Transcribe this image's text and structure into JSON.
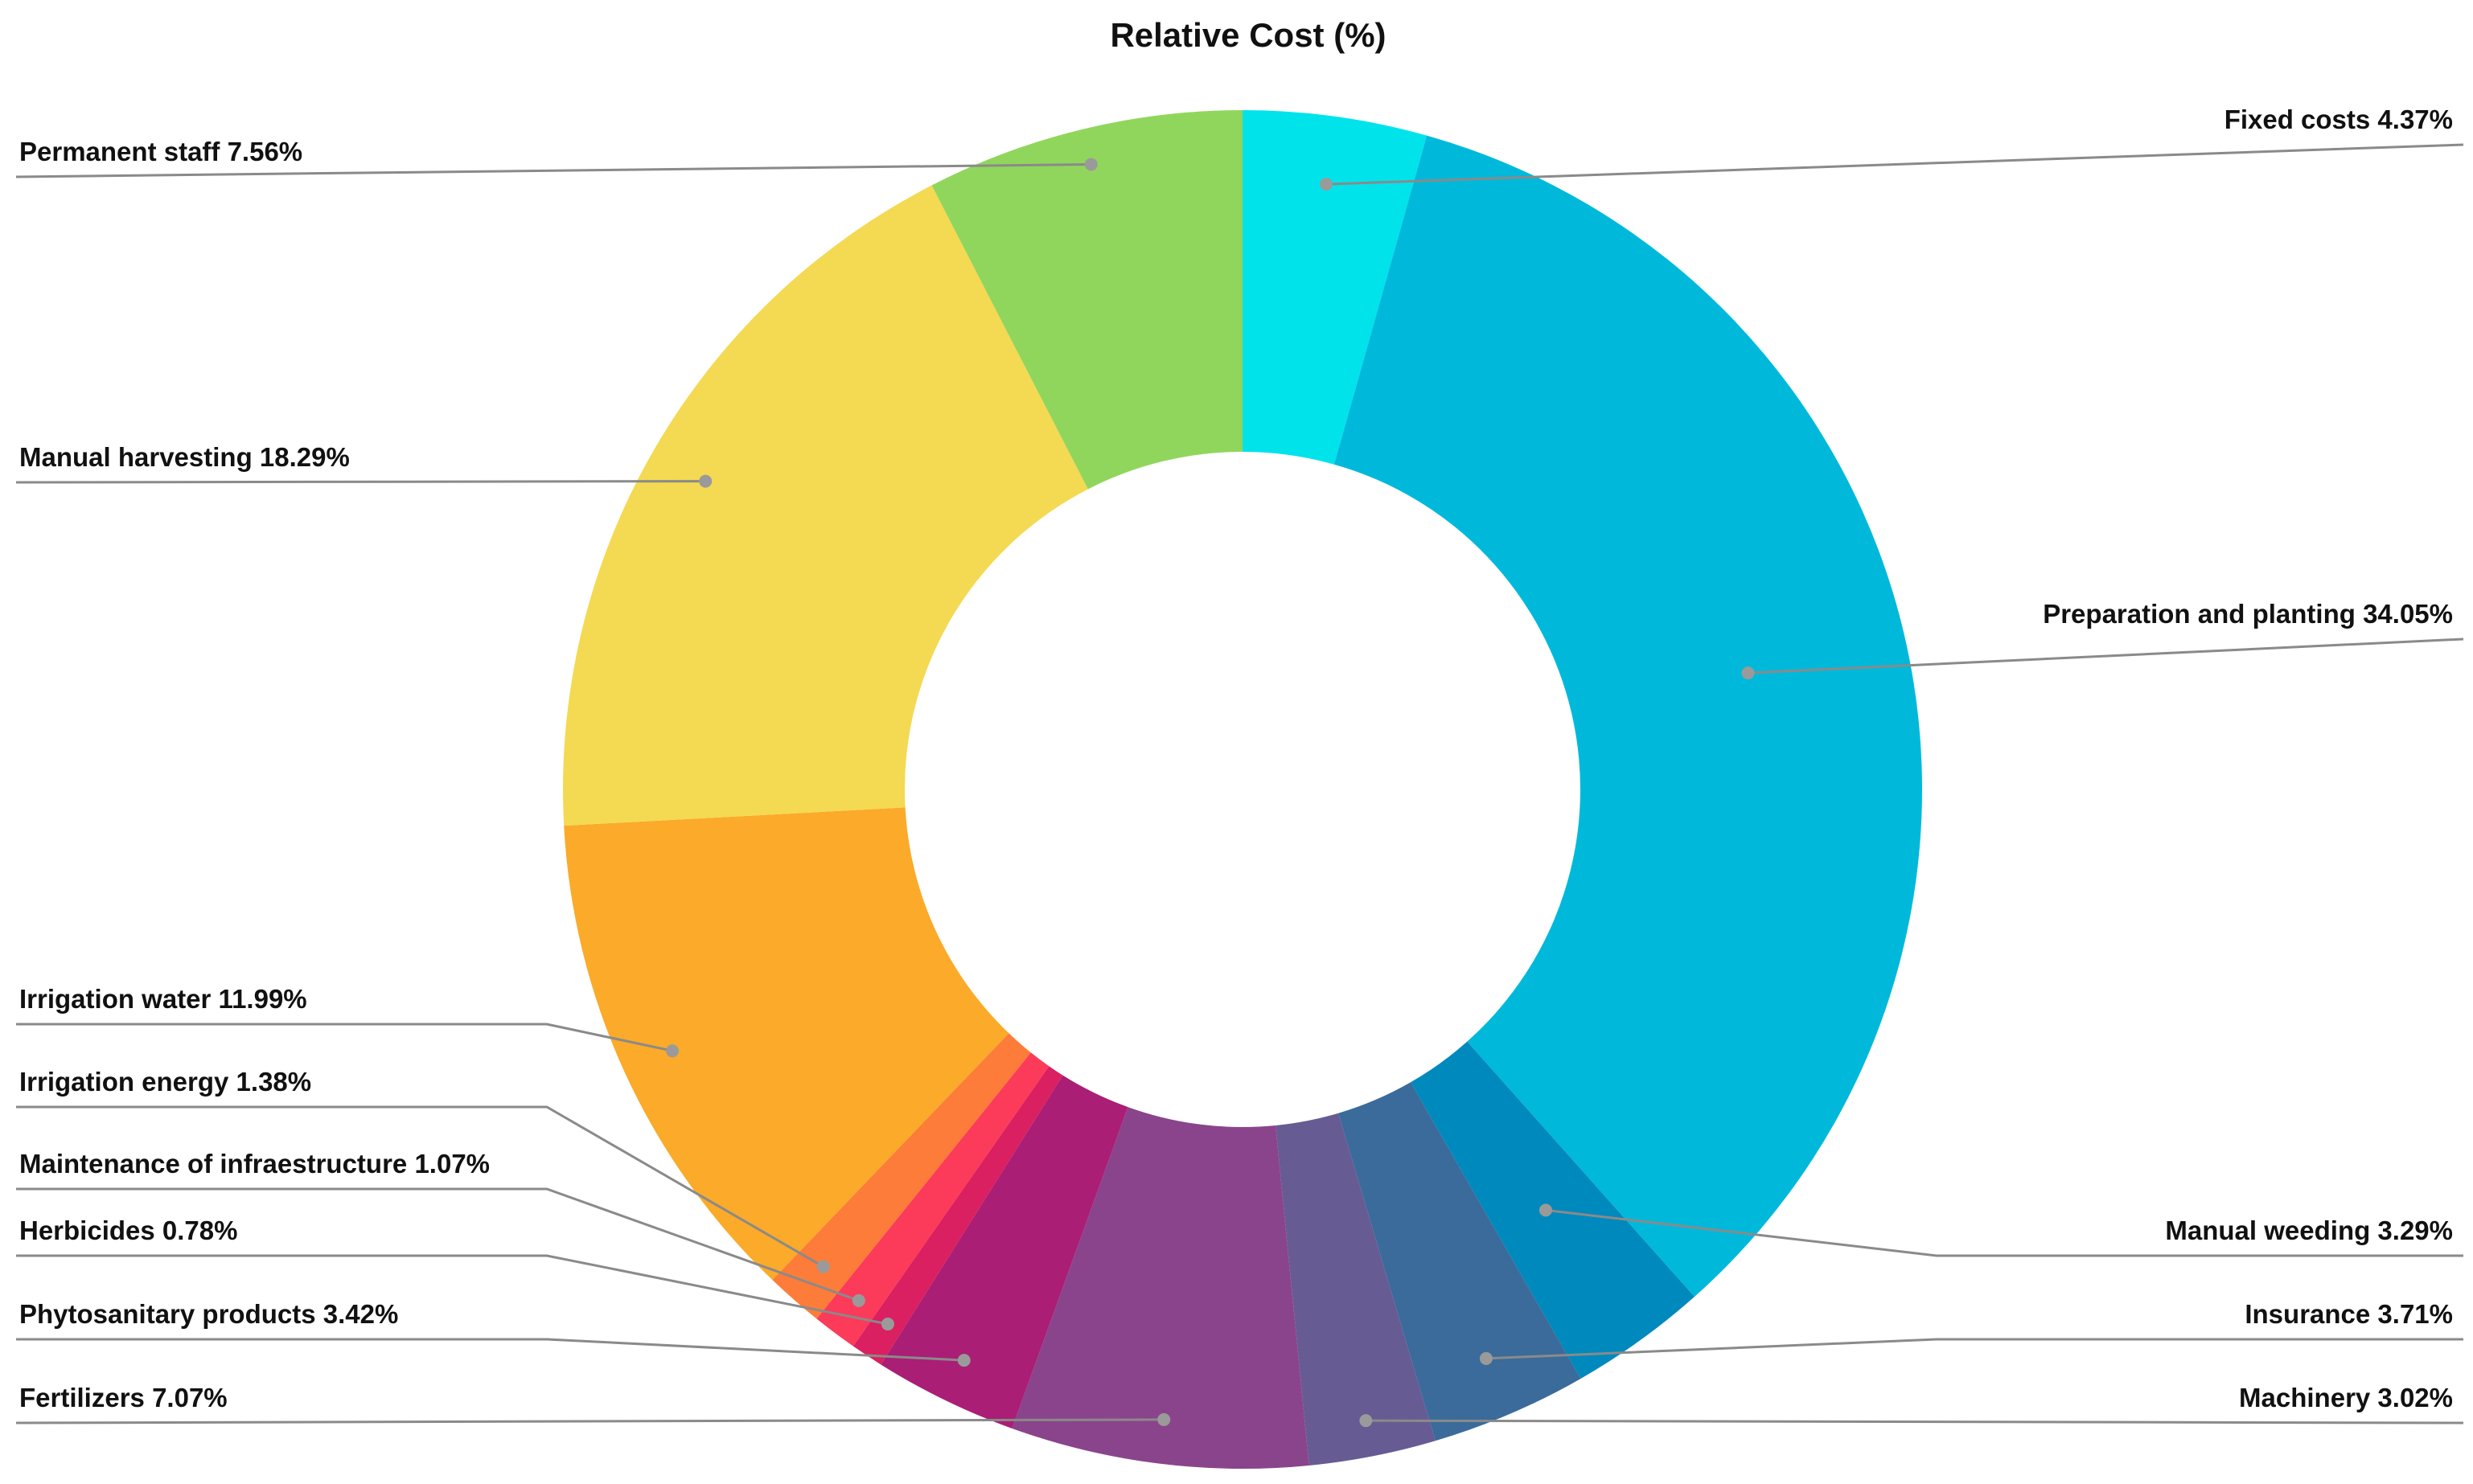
{
  "chart_data": {
    "type": "pie",
    "title": "Relative Cost (%)",
    "donut": true,
    "legend": "none",
    "slices": [
      {
        "name": "Fixed costs",
        "value": 4.37,
        "label": "Fixed costs 4.37%",
        "color": "#00E3EB"
      },
      {
        "name": "Preparation and planting",
        "value": 34.05,
        "label": "Preparation and planting 34.05%",
        "color": "#00B9DA"
      },
      {
        "name": "Manual weeding",
        "value": 3.29,
        "label": "Manual weeding 3.29%",
        "color": "#0089BD"
      },
      {
        "name": "Insurance",
        "value": 3.71,
        "label": "Insurance 3.71%",
        "color": "#3A6B9A"
      },
      {
        "name": "Machinery",
        "value": 3.02,
        "label": "Machinery 3.02%",
        "color": "#675B94"
      },
      {
        "name": "Fertilizers",
        "value": 7.07,
        "label": "Fertilizers 7.07%",
        "color": "#8A448C"
      },
      {
        "name": "Phytosanitary products",
        "value": 3.42,
        "label": "Phytosanitary products 3.42%",
        "color": "#AA1E75"
      },
      {
        "name": "Herbicides",
        "value": 0.78,
        "label": "Herbicides 0.78%",
        "color": "#DA2060"
      },
      {
        "name": "Maintenance of infraestructure",
        "value": 1.07,
        "label": "Maintenance of infraestructure 1.07%",
        "color": "#FC3A5A"
      },
      {
        "name": "Irrigation energy",
        "value": 1.38,
        "label": "Irrigation energy 1.38%",
        "color": "#FD7C39"
      },
      {
        "name": "Irrigation water",
        "value": 11.99,
        "label": "Irrigation water 11.99%",
        "color": "#FBAA29"
      },
      {
        "name": "Manual harvesting",
        "value": 18.29,
        "label": "Manual harvesting 18.29%",
        "color": "#F4D952"
      },
      {
        "name": "Permanent staff",
        "value": 7.56,
        "label": "Permanent staff 7.56%",
        "color": "#90D65C"
      }
    ]
  }
}
